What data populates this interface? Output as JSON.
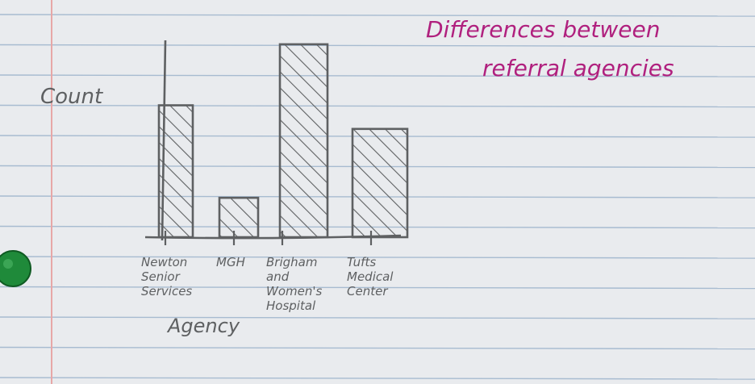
{
  "page": {
    "title_line1": "Differences between",
    "title_line2": "referral agencies"
  },
  "chart_data": {
    "type": "bar",
    "title": "Differences between referral agencies",
    "xlabel": "Agency",
    "ylabel": "Count",
    "categories": [
      {
        "lines": [
          "Newton",
          "Senior",
          "Services"
        ]
      },
      {
        "lines": [
          "MGH"
        ]
      },
      {
        "lines": [
          "Brigham",
          "and",
          "Women's",
          "Hospital"
        ]
      },
      {
        "lines": [
          "Tufts",
          "Medical",
          "Center"
        ]
      }
    ],
    "values": [
      6.7,
      2.0,
      9.8,
      5.5
    ],
    "ylim": [
      0,
      10
    ],
    "grid": false,
    "fill": "hatched",
    "colors": {
      "ink": "#5e6062",
      "title_ink": "#b0207e",
      "paper": "#e9ebee",
      "rule_line": "#a7bbd0",
      "margin_line": "#e7a7a7",
      "hole": "#1f8a3a"
    }
  }
}
